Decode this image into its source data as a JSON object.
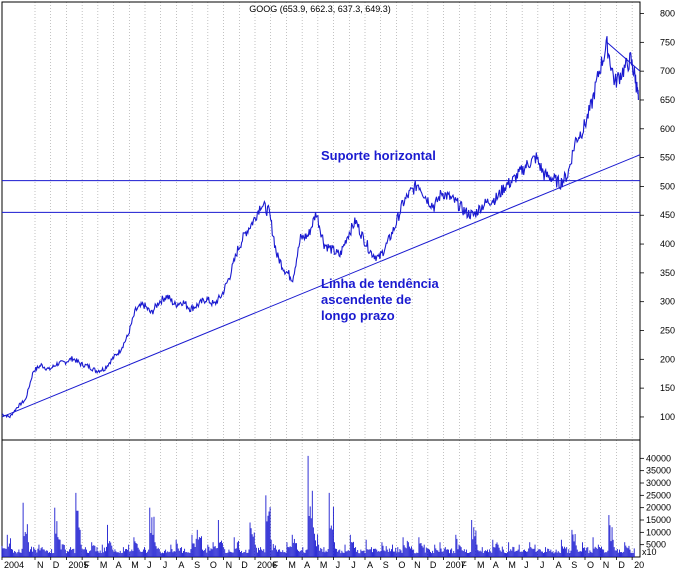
{
  "chart_data": {
    "type": "line",
    "title": "GOOG (653.9, 662.3, 637.3, 649.3)",
    "price_axis": {
      "ylim": [
        60,
        820
      ],
      "ticks": [
        100,
        150,
        200,
        250,
        300,
        350,
        400,
        450,
        500,
        550,
        600,
        650,
        700,
        750,
        800
      ]
    },
    "volume_axis": {
      "ylim": [
        0,
        45000
      ],
      "ticks": [
        5000,
        10000,
        15000,
        20000,
        25000,
        30000,
        35000,
        40000
      ],
      "scale_label": "x10"
    },
    "x_ticks": [
      {
        "t": 0.0,
        "label": "2004"
      },
      {
        "t": 2.1,
        "label": "N"
      },
      {
        "t": 3.1,
        "label": "D"
      },
      {
        "t": 4.1,
        "label": "2005"
      },
      {
        "t": 5.1,
        "label": "F"
      },
      {
        "t": 6.1,
        "label": "M"
      },
      {
        "t": 7.1,
        "label": "A"
      },
      {
        "t": 8.1,
        "label": "M"
      },
      {
        "t": 9.1,
        "label": "J"
      },
      {
        "t": 10.1,
        "label": "J"
      },
      {
        "t": 11.1,
        "label": "A"
      },
      {
        "t": 12.1,
        "label": "S"
      },
      {
        "t": 13.1,
        "label": "O"
      },
      {
        "t": 14.1,
        "label": "N"
      },
      {
        "t": 15.1,
        "label": "D"
      },
      {
        "t": 16.1,
        "label": "2006"
      },
      {
        "t": 17.1,
        "label": "F"
      },
      {
        "t": 18.1,
        "label": "M"
      },
      {
        "t": 19.1,
        "label": "A"
      },
      {
        "t": 20.1,
        "label": "M"
      },
      {
        "t": 21.1,
        "label": "J"
      },
      {
        "t": 22.1,
        "label": "J"
      },
      {
        "t": 23.1,
        "label": "A"
      },
      {
        "t": 24.1,
        "label": "S"
      },
      {
        "t": 25.1,
        "label": "O"
      },
      {
        "t": 26.1,
        "label": "N"
      },
      {
        "t": 27.1,
        "label": "D"
      },
      {
        "t": 28.1,
        "label": "2007"
      },
      {
        "t": 29.1,
        "label": "F"
      },
      {
        "t": 30.1,
        "label": "M"
      },
      {
        "t": 31.1,
        "label": "A"
      },
      {
        "t": 32.1,
        "label": "M"
      },
      {
        "t": 33.1,
        "label": "J"
      },
      {
        "t": 34.1,
        "label": "J"
      },
      {
        "t": 35.1,
        "label": "A"
      },
      {
        "t": 36.1,
        "label": "S"
      },
      {
        "t": 37.1,
        "label": "O"
      },
      {
        "t": 38.1,
        "label": "N"
      },
      {
        "t": 39.1,
        "label": "D"
      },
      {
        "t": 40.1,
        "label": "20"
      }
    ],
    "x_range": [
      0,
      40.6
    ],
    "series": [
      {
        "values": [
          [
            0.0,
            105
          ],
          [
            0.5,
            100
          ],
          [
            1.0,
            118
          ],
          [
            1.5,
            130
          ],
          [
            2.0,
            180
          ],
          [
            2.5,
            190
          ],
          [
            3.0,
            182
          ],
          [
            3.5,
            192
          ],
          [
            4.0,
            195
          ],
          [
            4.5,
            202
          ],
          [
            5.0,
            192
          ],
          [
            5.5,
            188
          ],
          [
            6.0,
            180
          ],
          [
            6.5,
            183
          ],
          [
            7.0,
            200
          ],
          [
            7.5,
            215
          ],
          [
            8.0,
            240
          ],
          [
            8.5,
            285
          ],
          [
            9.0,
            295
          ],
          [
            9.5,
            280
          ],
          [
            10.0,
            300
          ],
          [
            10.5,
            310
          ],
          [
            11.0,
            295
          ],
          [
            11.5,
            300
          ],
          [
            12.0,
            288
          ],
          [
            12.5,
            295
          ],
          [
            13.0,
            305
          ],
          [
            13.5,
            295
          ],
          [
            14.0,
            312
          ],
          [
            14.5,
            345
          ],
          [
            15.0,
            390
          ],
          [
            15.5,
            420
          ],
          [
            16.0,
            440
          ],
          [
            16.5,
            470
          ],
          [
            17.0,
            455
          ],
          [
            17.5,
            380
          ],
          [
            18.0,
            355
          ],
          [
            18.5,
            340
          ],
          [
            19.0,
            410
          ],
          [
            19.5,
            415
          ],
          [
            20.0,
            455
          ],
          [
            20.5,
            400
          ],
          [
            21.0,
            390
          ],
          [
            21.5,
            380
          ],
          [
            22.0,
            415
          ],
          [
            22.5,
            440
          ],
          [
            23.0,
            410
          ],
          [
            23.5,
            385
          ],
          [
            24.0,
            375
          ],
          [
            24.5,
            400
          ],
          [
            25.0,
            430
          ],
          [
            25.5,
            470
          ],
          [
            26.0,
            490
          ],
          [
            26.5,
            505
          ],
          [
            27.0,
            480
          ],
          [
            27.5,
            465
          ],
          [
            28.0,
            490
          ],
          [
            28.5,
            480
          ],
          [
            29.0,
            470
          ],
          [
            29.5,
            455
          ],
          [
            30.0,
            450
          ],
          [
            30.5,
            465
          ],
          [
            31.0,
            475
          ],
          [
            31.5,
            480
          ],
          [
            32.0,
            500
          ],
          [
            32.5,
            510
          ],
          [
            33.0,
            525
          ],
          [
            33.5,
            540
          ],
          [
            34.0,
            550
          ],
          [
            34.5,
            520
          ],
          [
            35.0,
            515
          ],
          [
            35.5,
            505
          ],
          [
            36.0,
            520
          ],
          [
            36.5,
            580
          ],
          [
            37.0,
            600
          ],
          [
            37.5,
            640
          ],
          [
            38.0,
            700
          ],
          [
            38.5,
            745
          ],
          [
            39.0,
            680
          ],
          [
            39.5,
            700
          ],
          [
            40.0,
            720
          ],
          [
            40.3,
            690
          ],
          [
            40.5,
            650
          ]
        ]
      }
    ],
    "volume": [
      4500,
      9000,
      3000,
      2000,
      22000,
      6000,
      4000,
      5000,
      3000,
      2000,
      20000,
      7000,
      3000,
      4000,
      26000,
      5000,
      3000,
      6000,
      4000,
      5000,
      13000,
      3000,
      2000,
      4000,
      5000,
      8000,
      3000,
      4000,
      20000,
      6000,
      2000,
      3000,
      5000,
      7000,
      4000,
      2000,
      9000,
      11000,
      3000,
      5000,
      6000,
      15000,
      4000,
      3000,
      8000,
      3000,
      2000,
      14000,
      5000,
      4000,
      25000,
      7000,
      3000,
      2000,
      6000,
      9000,
      3000,
      4000,
      41000,
      12000,
      5000,
      4000,
      26000,
      6000,
      3000,
      5000,
      9000,
      4000,
      3000,
      7000,
      4000,
      3000,
      6000,
      3000,
      5000,
      4000,
      8000,
      6000,
      3000,
      8000,
      5000,
      3000,
      5000,
      6000,
      4000,
      3000,
      9000,
      4000,
      3000,
      15000,
      5000,
      4000,
      3000,
      7000,
      5000,
      3000,
      6000,
      4000,
      5000,
      3000,
      6000,
      5000,
      3000,
      4000,
      3000,
      3000,
      7000,
      4000,
      11000,
      3000,
      6000,
      4000,
      8000,
      5000,
      3000,
      17000,
      4000,
      3000,
      6000,
      3000
    ],
    "annotations": {
      "support_label": "Suporte horizontal",
      "trend_label_1": "Linha de tendência",
      "trend_label_2": "ascendente de",
      "trend_label_3": "longo prazo"
    },
    "overlays": {
      "support_lines": [
        510,
        455
      ],
      "trend_line": [
        [
          0.0,
          100
        ],
        [
          40.6,
          555
        ]
      ],
      "resistance_line": [
        [
          38.5,
          750
        ],
        [
          40.6,
          700
        ]
      ]
    },
    "grid": true
  }
}
